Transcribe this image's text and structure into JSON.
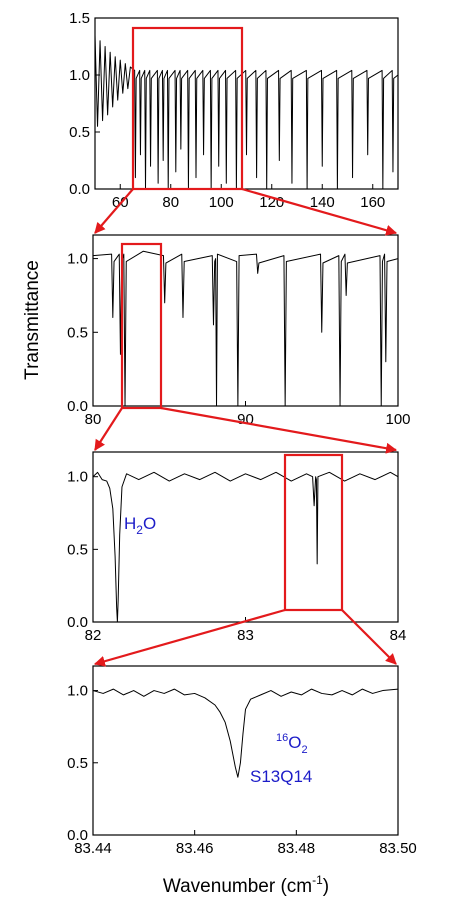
{
  "chart_data": [
    {
      "type": "line",
      "x": [
        50,
        51,
        52,
        53,
        54,
        55,
        56,
        57,
        58,
        59,
        60,
        61,
        62,
        63,
        64,
        65.7,
        66,
        66.3,
        67.7,
        68,
        68.3,
        69.7,
        70,
        70.3,
        71.7,
        72,
        72.3,
        74.7,
        75,
        75.3,
        76.7,
        77,
        77.3,
        78.7,
        79,
        79.3,
        81.7,
        82,
        82.3,
        83.7,
        84,
        84.3,
        86.7,
        87,
        87.3,
        89.7,
        90,
        90.3,
        92.7,
        93,
        93.3,
        95.7,
        96,
        96.3,
        98.7,
        99,
        99.3,
        101.7,
        102,
        102.3,
        105.7,
        106,
        106.3,
        109.7,
        110,
        110.3,
        113.7,
        114,
        114.3,
        117.7,
        118,
        118.3,
        122.7,
        123,
        123.3,
        127.7,
        128,
        128.3,
        133.7,
        134,
        134.3,
        139.7,
        140,
        140.3,
        145.7,
        146,
        146.3,
        151.7,
        152,
        152.3,
        157.7,
        158,
        158.3,
        163.7,
        164,
        164.3,
        167.7,
        168,
        168.3,
        170
      ],
      "series": [
        {
          "color": "#000000",
          "values": [
            1.35,
            0.55,
            1.3,
            0.6,
            1.25,
            0.65,
            1.2,
            0.72,
            1.16,
            0.78,
            1.13,
            0.84,
            1.1,
            0.88,
            1.07,
            1.04,
            0.1,
            0.97,
            1.04,
            0.3,
            0.97,
            1.04,
            0.0,
            0.97,
            1.04,
            0.2,
            0.97,
            1.04,
            0.05,
            0.97,
            1.04,
            0.25,
            0.97,
            1.04,
            0.0,
            0.97,
            1.04,
            0.15,
            0.97,
            1.04,
            0.35,
            0.97,
            1.04,
            0.0,
            0.97,
            1.04,
            0.1,
            0.97,
            1.04,
            0.3,
            0.97,
            1.04,
            0.0,
            0.97,
            1.04,
            0.2,
            0.97,
            1.04,
            0.05,
            0.97,
            1.04,
            0.0,
            0.97,
            1.04,
            0.3,
            0.97,
            1.04,
            0.1,
            0.97,
            1.04,
            0.0,
            0.97,
            1.04,
            0.25,
            0.97,
            1.04,
            0.05,
            0.97,
            1.04,
            0.0,
            0.97,
            1.04,
            0.2,
            0.97,
            1.04,
            0.0,
            0.97,
            1.04,
            0.1,
            0.97,
            1.04,
            0.3,
            0.97,
            1.04,
            0.0,
            0.97,
            1.04,
            0.15,
            0.97,
            1.0
          ]
        }
      ],
      "xlim": [
        50,
        170
      ],
      "xticks": [
        60,
        80,
        100,
        120,
        140,
        160
      ],
      "ylim": [
        0,
        1.5
      ],
      "yticks": [
        {
          "value": 0,
          "label": "0.0"
        },
        {
          "value": 0.5,
          "label": "0.5"
        },
        {
          "value": 1,
          "label": "1.0"
        },
        {
          "value": 1.5,
          "label": "1.5"
        }
      ]
    },
    {
      "type": "line",
      "ylabel": "Transmittance",
      "x": [
        80,
        81.22,
        81.3,
        81.38,
        81.72,
        81.8,
        81.88,
        82.02,
        82.1,
        82.18,
        83.3,
        84.62,
        84.7,
        84.78,
        85.82,
        85.9,
        85.98,
        87.82,
        87.9,
        87.98,
        88.04,
        88.1,
        88.16,
        89.42,
        89.5,
        89.58,
        90.72,
        90.8,
        90.88,
        92.52,
        92.6,
        92.68,
        94.92,
        95.0,
        95.08,
        96.12,
        96.2,
        96.28,
        96.52,
        96.6,
        96.68,
        98.82,
        98.9,
        98.98,
        99.12,
        99.2,
        99.28,
        100
      ],
      "series": [
        {
          "color": "#000000",
          "values": [
            1.02,
            1.03,
            0.6,
            0.98,
            1.03,
            0.35,
            0.98,
            1.03,
            0.0,
            0.98,
            1.05,
            1.02,
            0.7,
            0.97,
            1.03,
            0.6,
            0.98,
            1.02,
            0.55,
            0.98,
            1.0,
            0.0,
            1.03,
            0.98,
            0.0,
            1.02,
            1.03,
            0.9,
            0.97,
            1.02,
            0.0,
            0.98,
            1.03,
            0.5,
            0.97,
            1.02,
            0.0,
            0.98,
            1.03,
            0.75,
            0.97,
            1.02,
            0.0,
            0.98,
            1.03,
            0.3,
            0.98,
            1.0
          ]
        }
      ],
      "xlim": [
        80,
        100
      ],
      "xticks": [
        80,
        90,
        100
      ],
      "ylim": [
        0,
        1.16
      ],
      "yticks": [
        {
          "value": 0,
          "label": "0.0"
        },
        {
          "value": 0.5,
          "label": "0.5"
        },
        {
          "value": 1,
          "label": "1.0"
        }
      ]
    },
    {
      "type": "line",
      "annotations": [
        {
          "text": "H",
          "sub": "2",
          "text_end": "O"
        }
      ],
      "x": [
        82,
        82.03,
        82.06,
        82.09,
        82.11,
        82.13,
        82.145,
        82.155,
        82.16,
        82.165,
        82.175,
        82.19,
        82.22,
        82.3,
        82.4,
        82.5,
        82.6,
        82.7,
        82.8,
        82.9,
        83.0,
        83.1,
        83.2,
        83.3,
        83.4,
        83.44,
        83.45,
        83.46,
        83.465,
        83.47,
        83.475,
        83.55,
        83.65,
        83.75,
        83.85,
        83.95,
        84
      ],
      "series": [
        {
          "color": "#000000",
          "values": [
            1.0,
            1.03,
            0.98,
            0.97,
            0.92,
            0.78,
            0.45,
            0.1,
            0.0,
            0.15,
            0.6,
            0.93,
            1.02,
            0.98,
            1.03,
            0.97,
            1.02,
            0.98,
            1.03,
            0.97,
            1.02,
            0.98,
            1.03,
            0.97,
            1.02,
            1.0,
            0.8,
            1.0,
            0.98,
            0.4,
            1.0,
            1.03,
            0.97,
            1.02,
            0.98,
            1.03,
            1.0
          ]
        }
      ],
      "xlim": [
        82,
        84
      ],
      "xticks": [
        82,
        83,
        84
      ],
      "ylim": [
        0,
        1.17
      ],
      "yticks": [
        {
          "value": 0,
          "label": "0.0"
        },
        {
          "value": 0.5,
          "label": "0.5"
        },
        {
          "value": 1,
          "label": "1.0"
        }
      ]
    },
    {
      "type": "line",
      "annotations": [
        {
          "sup": "16",
          "text": "O",
          "sub": "2"
        },
        {
          "text": "S13Q14"
        }
      ],
      "xlabel": {
        "text": "Wavenumber (cm",
        "sup": "-1",
        "text_end": ")"
      },
      "x": [
        83.44,
        83.442,
        83.444,
        83.446,
        83.448,
        83.45,
        83.452,
        83.454,
        83.456,
        83.458,
        83.46,
        83.462,
        83.464,
        83.465,
        83.466,
        83.467,
        83.468,
        83.4685,
        83.469,
        83.4695,
        83.47,
        83.471,
        83.473,
        83.475,
        83.477,
        83.479,
        83.481,
        83.483,
        83.485,
        83.487,
        83.489,
        83.491,
        83.493,
        83.495,
        83.497,
        83.5
      ],
      "series": [
        {
          "color": "#000000",
          "values": [
            1.0,
            0.98,
            1.01,
            0.97,
            1.0,
            0.96,
            1.0,
            0.98,
            1.01,
            0.97,
            0.98,
            0.95,
            0.9,
            0.85,
            0.78,
            0.65,
            0.47,
            0.4,
            0.5,
            0.7,
            0.87,
            0.94,
            0.97,
            1.0,
            0.96,
            0.99,
            0.97,
            1.01,
            0.98,
            0.97,
            1.0,
            0.97,
            1.01,
            0.98,
            1.0,
            1.01
          ]
        }
      ],
      "xlim": [
        83.44,
        83.5
      ],
      "xticks": [
        {
          "value": 83.44,
          "label": "83.44"
        },
        {
          "value": 83.46,
          "label": "83.46"
        },
        {
          "value": 83.48,
          "label": "83.48"
        },
        {
          "value": 83.5,
          "label": "83.50"
        }
      ],
      "ylim": [
        0,
        1.17
      ],
      "yticks": [
        {
          "value": 0,
          "label": "0.0"
        },
        {
          "value": 0.5,
          "label": "0.5"
        },
        {
          "value": 1,
          "label": "1.0"
        }
      ]
    }
  ]
}
